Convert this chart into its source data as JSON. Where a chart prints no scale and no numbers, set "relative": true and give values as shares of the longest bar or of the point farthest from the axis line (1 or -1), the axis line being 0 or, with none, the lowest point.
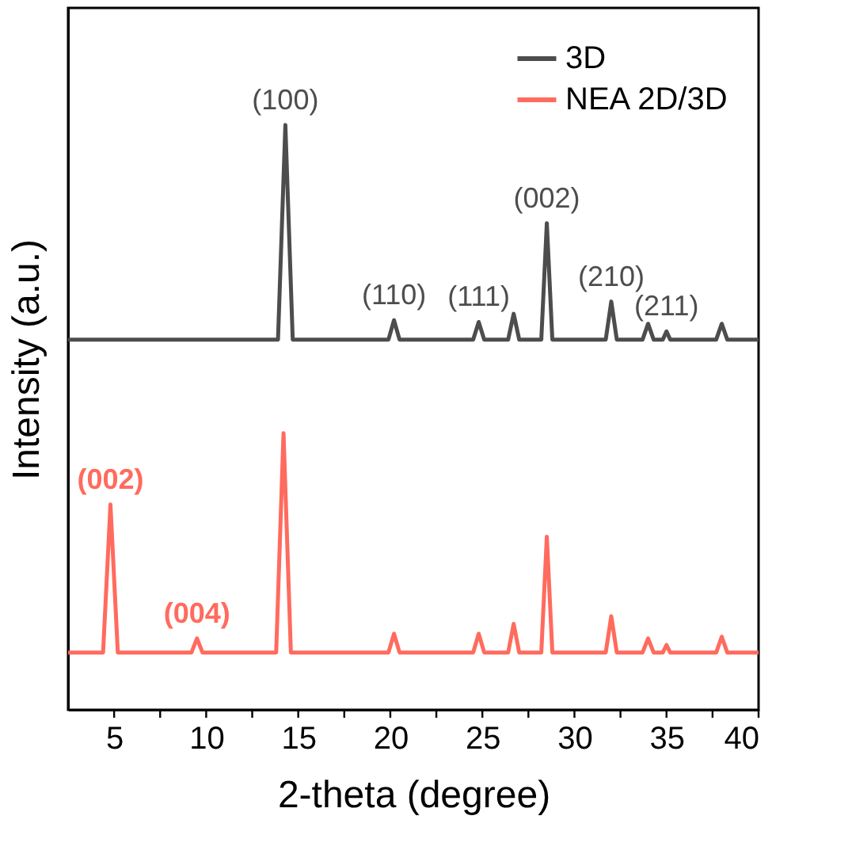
{
  "chart_data": {
    "type": "line",
    "relative": true,
    "xlabel": "2-theta (degree)",
    "ylabel": "Intensity (a.u.)",
    "xlim": [
      2.5,
      40
    ],
    "xticks": [
      5,
      {
        "value": 7.5,
        "label": null
      },
      10,
      {
        "value": 12.5,
        "label": null
      },
      15,
      {
        "value": 17.5,
        "label": null
      },
      20,
      {
        "value": 22.5,
        "label": null
      },
      25,
      {
        "value": 27.5,
        "label": null
      },
      30,
      {
        "value": 32.5,
        "label": null
      },
      35,
      {
        "value": 37.5,
        "label": null
      },
      40
    ],
    "legend": "top right",
    "grid": false,
    "marker": "none",
    "line_style": "solid",
    "tick_labels": "x",
    "series": [
      {
        "name": "3D",
        "color": "#4d4d4d",
        "x": [
          2.5,
          13.9,
          14.3,
          14.7,
          19.9,
          20.2,
          20.5,
          24.5,
          24.8,
          25.1,
          26.4,
          26.7,
          27.0,
          28.2,
          28.5,
          28.8,
          31.7,
          32.0,
          32.3,
          33.7,
          34.0,
          34.3,
          34.8,
          35.0,
          35.2,
          37.7,
          38.0,
          38.3,
          40
        ],
        "values": [
          0.633,
          0.633,
          1.0,
          0.633,
          0.633,
          0.666,
          0.633,
          0.633,
          0.663,
          0.633,
          0.633,
          0.677,
          0.633,
          0.633,
          0.832,
          0.633,
          0.633,
          0.698,
          0.633,
          0.633,
          0.66,
          0.633,
          0.633,
          0.647,
          0.633,
          0.633,
          0.66,
          0.633,
          0.633
        ]
      },
      {
        "name": "NEA 2D/3D",
        "color": "#ff6b5e",
        "x": [
          2.5,
          4.4,
          4.8,
          5.2,
          9.2,
          9.5,
          9.8,
          13.8,
          14.2,
          14.6,
          19.9,
          20.2,
          20.5,
          24.5,
          24.8,
          25.1,
          26.4,
          26.7,
          27.0,
          28.2,
          28.5,
          28.8,
          31.7,
          32.0,
          32.3,
          33.7,
          34.0,
          34.3,
          34.8,
          35.0,
          35.2,
          37.7,
          38.0,
          38.3,
          40
        ],
        "values": [
          0.098,
          0.098,
          0.351,
          0.098,
          0.098,
          0.122,
          0.098,
          0.098,
          0.473,
          0.098,
          0.098,
          0.13,
          0.098,
          0.098,
          0.13,
          0.098,
          0.098,
          0.147,
          0.098,
          0.098,
          0.296,
          0.098,
          0.098,
          0.16,
          0.098,
          0.098,
          0.122,
          0.098,
          0.098,
          0.111,
          0.098,
          0.098,
          0.125,
          0.098,
          0.098
        ]
      }
    ],
    "annotations": [
      {
        "text": "(100)",
        "x": 14.3,
        "y": 1.0
      },
      {
        "text": "(110)",
        "x": 20.2,
        "y": 0.666
      },
      {
        "text": "(111)",
        "x": 24.8,
        "y": 0.663
      },
      {
        "text": "(002)",
        "x": 28.5,
        "y": 0.832
      },
      {
        "text": "(210)",
        "x": 32.0,
        "y": 0.698
      },
      {
        "text": "(211)",
        "x": 35.0,
        "y": 0.647
      },
      {
        "text": "(002)",
        "x": 4.8,
        "y": 0.351
      },
      {
        "text": "(004)",
        "x": 9.5,
        "y": 0.122
      }
    ]
  }
}
